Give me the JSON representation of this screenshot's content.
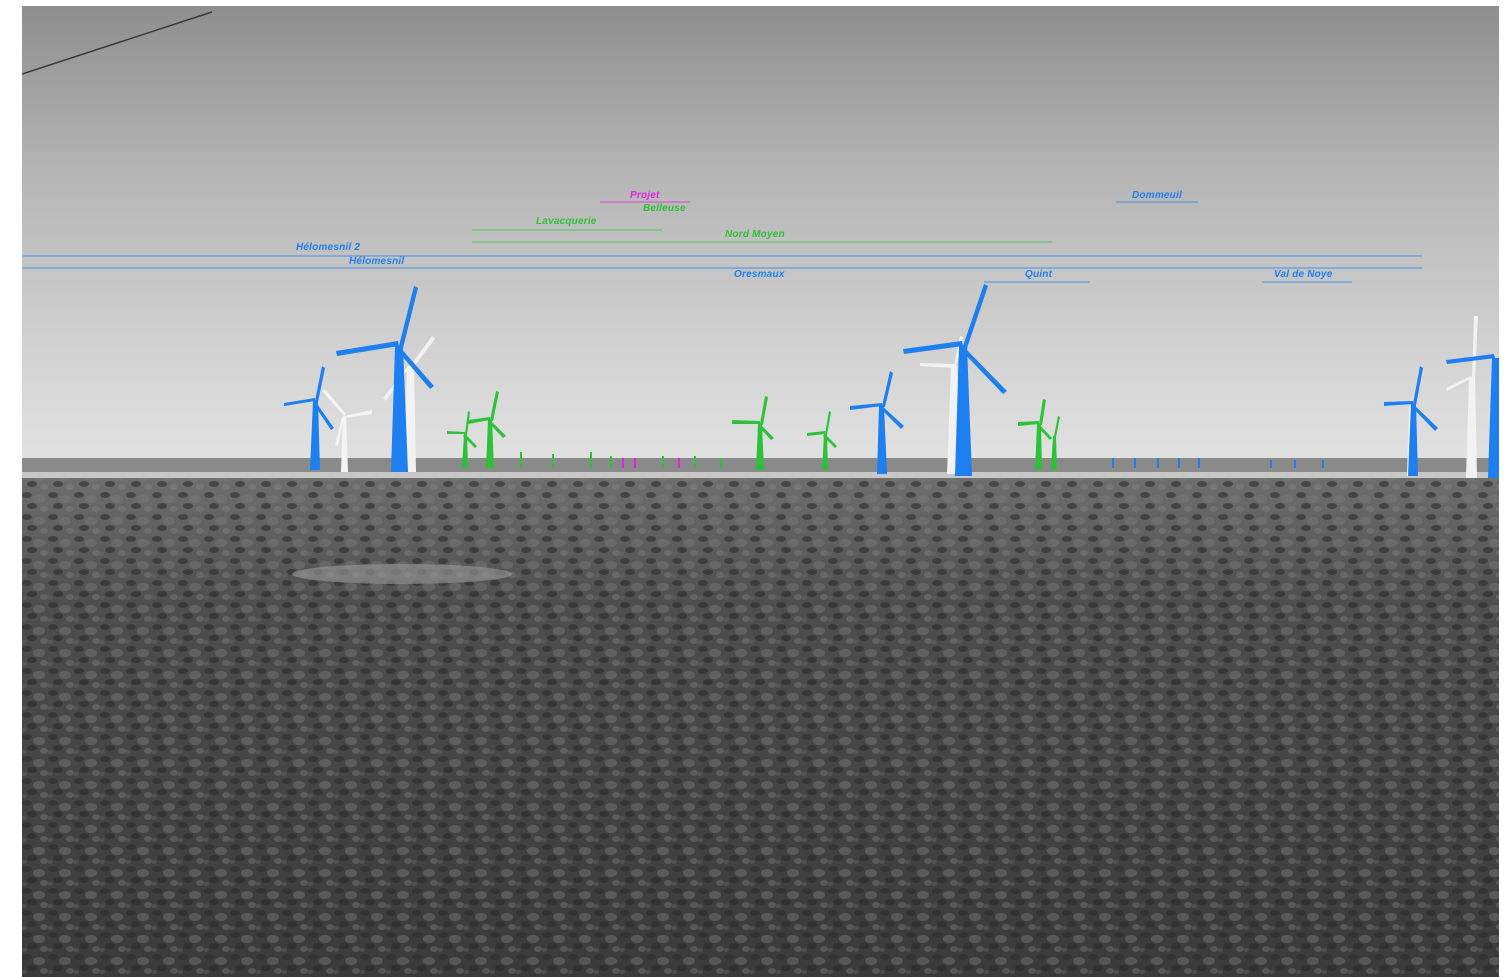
{
  "colors": {
    "existing_parks": "#1e7ff0",
    "authorized_parks": "#2ec23a",
    "project": "#e61ee6",
    "white_turbines": "#ffffff",
    "sky_top": "#8c8c8c",
    "sky_horizon": "#dcdcdc",
    "field": "#5a5a5a"
  },
  "labels": {
    "projet": "Projet",
    "belleuse": "Belleuse",
    "lavacquerie": "Lavacquerie",
    "nord_moyen": "Nord Moyen",
    "helomesnil_2": "Hélomesnil 2",
    "helomesnil": "Hélomesnil",
    "oresmaux": "Oresmaux",
    "quint": "Quint",
    "val_de_noye": "Val de Noye",
    "dommeuil": "Dommeuil"
  }
}
